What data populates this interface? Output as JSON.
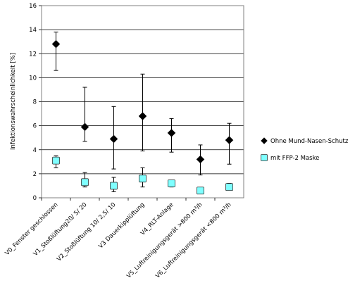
{
  "chart_data": {
    "type": "scatter",
    "categories": [
      "V0_Fenster geschlossen",
      "V1_Stoßlüftung20/ 5/ 20",
      "V2_Stoßlüftung 10/ 2,5/ 10",
      "V3 Dauerkipplüftung",
      "V4_RLT-Anlage",
      "V5_Luftreinigungsgerät >800 m³/h",
      "V6_Luftreinigungsgerät <800 m³/h"
    ],
    "ylabel": "Infektionswahrscheinlichkeit [%]",
    "ylim": [
      0,
      16
    ],
    "yticks": [
      "0",
      "2",
      "4",
      "6",
      "8",
      "10",
      "12",
      "14",
      "16"
    ],
    "grid": true,
    "legend_position": "right",
    "series": [
      {
        "name": "Ohne Mund-Nasen-Schutz",
        "marker": "diamond",
        "color": "#000000",
        "values": [
          12.8,
          5.9,
          4.9,
          6.8,
          5.4,
          3.2,
          4.8
        ],
        "error_low": [
          10.6,
          4.7,
          2.4,
          3.9,
          3.8,
          1.9,
          2.8
        ],
        "error_high": [
          13.8,
          9.2,
          7.6,
          10.3,
          6.6,
          4.4,
          6.2
        ]
      },
      {
        "name": "mit FFP-2 Maske",
        "marker": "square",
        "color": "#7FFFFF",
        "values": [
          3.1,
          1.3,
          1.0,
          1.6,
          1.2,
          0.6,
          0.9
        ],
        "error_low": [
          2.5,
          0.9,
          0.5,
          0.9,
          0.9,
          0.6,
          0.7
        ],
        "error_high": [
          3.5,
          2.1,
          1.7,
          2.5,
          1.4,
          0.7,
          1.2
        ]
      }
    ]
  }
}
